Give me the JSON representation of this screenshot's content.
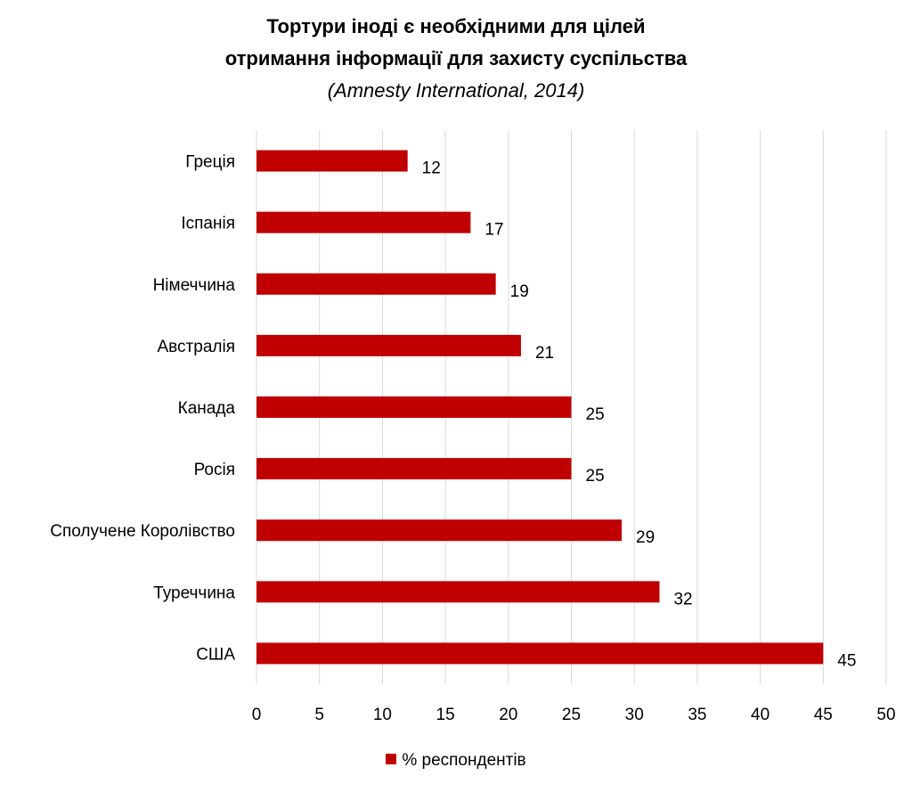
{
  "chart_data": {
    "type": "bar",
    "orientation": "horizontal",
    "title_line1": "Тортури іноді є необхідними для цілей",
    "title_line2": "отримання інформації для захисту суспільства",
    "subtitle": "(Amnesty International, 2014)",
    "categories": [
      "Греція",
      "Іспанія",
      "Німеччина",
      "Австралія",
      "Канада",
      "Росія",
      "Сполучене Королівство",
      "Туреччина",
      "США"
    ],
    "series": [
      {
        "name": "% респондентів",
        "values": [
          12,
          17,
          19,
          21,
          25,
          25,
          29,
          32,
          45
        ],
        "color": "#c00000"
      }
    ],
    "xlim": [
      0,
      50
    ],
    "xticks": [
      "0",
      "5",
      "10",
      "15",
      "20",
      "25",
      "30",
      "35",
      "40",
      "45",
      "50"
    ],
    "grid": "vertical",
    "legend_position": "bottom",
    "data_labels": true
  }
}
